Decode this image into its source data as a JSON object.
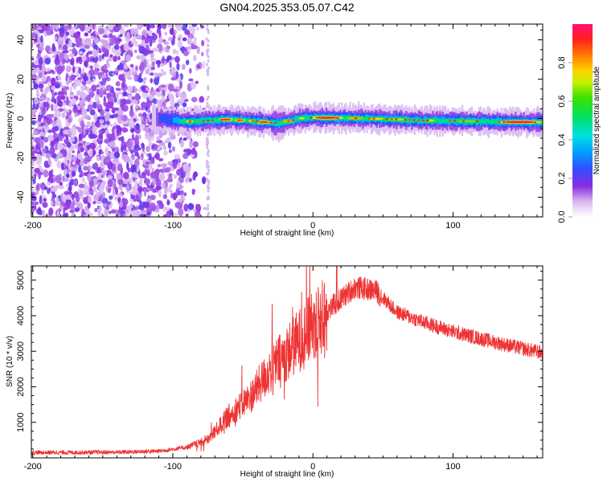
{
  "title": "GN04.2025.353.05.07.C42",
  "chart_data": [
    {
      "type": "heatmap",
      "name": "spectrogram",
      "xlabel": "Height of straight line (km)",
      "ylabel": "Frequency (Hz)",
      "xlim": [
        -201,
        164
      ],
      "ylim": [
        -50,
        48
      ],
      "xticks": [
        -200,
        -100,
        0,
        100
      ],
      "yticks": [
        -40,
        -20,
        0,
        20,
        40
      ],
      "colorbar": {
        "label": "Normalized spectral amplitude",
        "range": [
          0,
          1
        ],
        "ticks": [
          0.0,
          0.2,
          0.4,
          0.6,
          0.8
        ],
        "tick_labels": [
          "0.0",
          "0.2",
          "0.4",
          "0.6",
          "0.8"
        ],
        "colors": [
          "#ffffff",
          "#d0b0f0",
          "#8a2be2",
          "#3050ff",
          "#00c8ff",
          "#00e8b0",
          "#20e020",
          "#c0f000",
          "#ffd000",
          "#ff7000",
          "#ff2020",
          "#ff1060"
        ]
      },
      "noise_region_x": [
        -201,
        -75
      ],
      "signal_region_x": [
        -110,
        164
      ],
      "ridge": [
        {
          "x": -110,
          "f": 0
        },
        {
          "x": -90,
          "f": -1.5
        },
        {
          "x": -60,
          "f": -0.5
        },
        {
          "x": -40,
          "f": -1.5
        },
        {
          "x": -25,
          "f": -2.5
        },
        {
          "x": -10,
          "f": 0
        },
        {
          "x": 0,
          "f": 0.5
        },
        {
          "x": 40,
          "f": 0
        },
        {
          "x": 80,
          "f": -1
        },
        {
          "x": 120,
          "f": -1.5
        },
        {
          "x": 164,
          "f": -2
        }
      ]
    },
    {
      "type": "line",
      "name": "snr",
      "xlabel": "Height of straight line (km)",
      "ylabel": "SNR (10 * v/v)",
      "xlim": [
        -201,
        164
      ],
      "ylim": [
        0,
        5400
      ],
      "xticks": [
        -200,
        -100,
        0,
        100
      ],
      "yticks": [
        1000,
        2000,
        3000,
        4000,
        5000
      ],
      "color": "#ee3333",
      "series": [
        {
          "name": "SNR",
          "trend": [
            {
              "x": -201,
              "y": 150
            },
            {
              "x": -140,
              "y": 160
            },
            {
              "x": -110,
              "y": 190
            },
            {
              "x": -90,
              "y": 300
            },
            {
              "x": -75,
              "y": 500
            },
            {
              "x": -60,
              "y": 1200
            },
            {
              "x": -45,
              "y": 1700
            },
            {
              "x": -30,
              "y": 2500
            },
            {
              "x": -15,
              "y": 3100
            },
            {
              "x": 0,
              "y": 3700
            },
            {
              "x": 15,
              "y": 4300
            },
            {
              "x": 30,
              "y": 4800
            },
            {
              "x": 45,
              "y": 4700
            },
            {
              "x": 60,
              "y": 4100
            },
            {
              "x": 80,
              "y": 3800
            },
            {
              "x": 100,
              "y": 3550
            },
            {
              "x": 130,
              "y": 3250
            },
            {
              "x": 164,
              "y": 2950
            }
          ]
        }
      ]
    }
  ]
}
